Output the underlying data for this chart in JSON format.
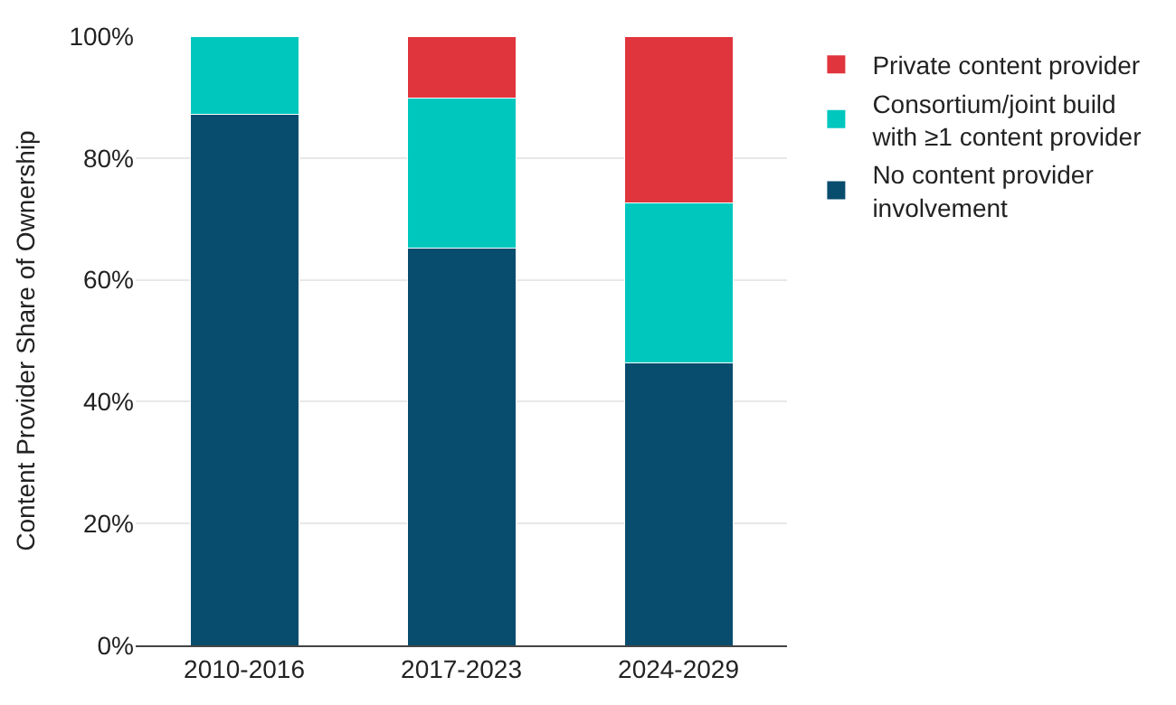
{
  "chart_data": {
    "type": "bar",
    "stacked": true,
    "ylabel": "Content Provider Share of Ownership",
    "categories": [
      "2010-2016",
      "2017-2023",
      "2024-2029"
    ],
    "series": [
      {
        "name": "No content provider involvement",
        "color": "#084c6e",
        "values": [
          87.1,
          65.2,
          46.3
        ]
      },
      {
        "name": "Consortium/joint build with ≥1 content provider",
        "color": "#00c7be",
        "values": [
          12.9,
          24.7,
          26.3
        ]
      },
      {
        "name": "Private content provider",
        "color": "#e0353d",
        "values": [
          null,
          10.1,
          27.4
        ]
      }
    ],
    "ylim": [
      0,
      100
    ],
    "yticks": [
      {
        "value": 0,
        "label": "0%"
      },
      {
        "value": 20,
        "label": "20%"
      },
      {
        "value": 40,
        "label": "40%"
      },
      {
        "value": 60,
        "label": "60%"
      },
      {
        "value": 80,
        "label": "80%"
      },
      {
        "value": 100,
        "label": "100%"
      }
    ],
    "grid": "y",
    "legend": "top right"
  }
}
